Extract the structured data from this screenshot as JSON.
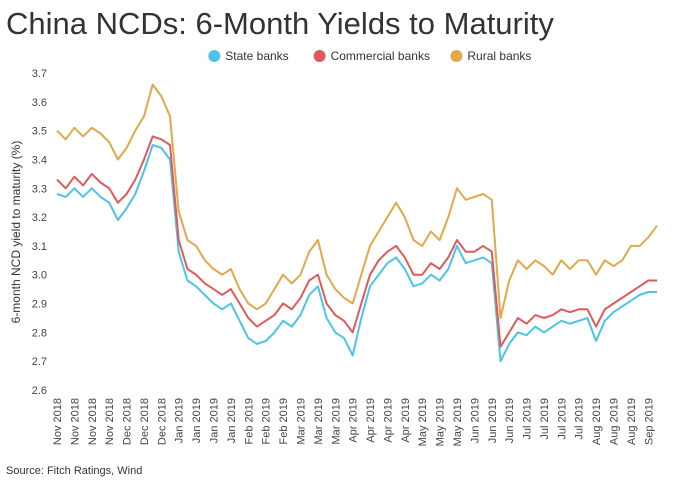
{
  "chart_data": {
    "type": "line",
    "title": "China NCDs: 6-Month Yields to Maturity",
    "ylabel": "6-month NCD yield to maturity (%)",
    "source": "Source: Fitch Ratings, Wind",
    "categories": [
      "Nov 2018",
      null,
      "Nov 2018",
      null,
      "Nov 2018",
      null,
      "Nov 2018",
      null,
      "Dec 2018",
      null,
      "Dec 2018",
      null,
      "Dec 2018",
      null,
      "Jan 2019",
      null,
      "Jan 2019",
      null,
      "Jan 2019",
      null,
      "Jan 2019",
      null,
      "Feb 2019",
      null,
      "Feb 2019",
      null,
      "Feb 2019",
      null,
      "Mar 2019",
      null,
      "Mar 2019",
      null,
      "Mar 2019",
      null,
      "Apr 2019",
      null,
      "Apr 2019",
      null,
      "Apr 2019",
      null,
      "Apr 2019",
      null,
      "May 2019",
      null,
      "May 2019",
      null,
      "May 2019",
      null,
      "Jun 2019",
      null,
      "Jun 2019",
      null,
      "Jun 2019",
      null,
      "Jul 2019",
      null,
      "Jul 2019",
      null,
      "Jul 2019",
      null,
      "Jul 2019",
      null,
      "Aug 2019",
      null,
      "Aug 2019",
      null,
      "Aug 2019",
      null,
      "Sep 2019",
      null
    ],
    "series": [
      {
        "name": "State banks",
        "color": "#4cc4ea",
        "values": [
          3.28,
          3.27,
          3.3,
          3.27,
          3.3,
          3.27,
          3.25,
          3.19,
          3.23,
          3.28,
          3.36,
          3.45,
          3.44,
          3.4,
          3.08,
          2.98,
          2.96,
          2.93,
          2.9,
          2.88,
          2.9,
          2.84,
          2.78,
          2.76,
          2.77,
          2.8,
          2.84,
          2.82,
          2.86,
          2.93,
          2.96,
          2.85,
          2.8,
          2.78,
          2.72,
          2.85,
          2.96,
          3.0,
          3.04,
          3.06,
          3.02,
          2.96,
          2.97,
          3.0,
          2.98,
          3.02,
          3.1,
          3.04,
          3.05,
          3.06,
          3.04,
          2.7,
          2.76,
          2.8,
          2.79,
          2.82,
          2.8,
          2.82,
          2.84,
          2.83,
          2.84,
          2.85,
          2.77,
          2.84,
          2.87,
          2.89,
          2.91,
          2.93,
          2.94,
          2.94
        ]
      },
      {
        "name": "Commercial banks",
        "color": "#e05a5a",
        "values": [
          3.33,
          3.3,
          3.34,
          3.31,
          3.35,
          3.32,
          3.3,
          3.25,
          3.28,
          3.33,
          3.4,
          3.48,
          3.47,
          3.45,
          3.12,
          3.02,
          3.0,
          2.97,
          2.95,
          2.93,
          2.95,
          2.9,
          2.85,
          2.82,
          2.84,
          2.86,
          2.9,
          2.88,
          2.92,
          2.98,
          3.0,
          2.9,
          2.86,
          2.84,
          2.8,
          2.9,
          3.0,
          3.05,
          3.08,
          3.1,
          3.06,
          3.0,
          3.0,
          3.04,
          3.02,
          3.06,
          3.12,
          3.08,
          3.08,
          3.1,
          3.08,
          2.75,
          2.8,
          2.85,
          2.83,
          2.86,
          2.85,
          2.86,
          2.88,
          2.87,
          2.88,
          2.88,
          2.82,
          2.88,
          2.9,
          2.92,
          2.94,
          2.96,
          2.98,
          2.98
        ]
      },
      {
        "name": "Rural banks",
        "color": "#e2a84a",
        "values": [
          3.5,
          3.47,
          3.51,
          3.48,
          3.51,
          3.49,
          3.46,
          3.4,
          3.44,
          3.5,
          3.55,
          3.66,
          3.62,
          3.55,
          3.22,
          3.12,
          3.1,
          3.05,
          3.02,
          3.0,
          3.02,
          2.95,
          2.9,
          2.88,
          2.9,
          2.95,
          3.0,
          2.97,
          3.0,
          3.08,
          3.12,
          3.0,
          2.95,
          2.92,
          2.9,
          3.0,
          3.1,
          3.15,
          3.2,
          3.25,
          3.2,
          3.12,
          3.1,
          3.15,
          3.12,
          3.2,
          3.3,
          3.26,
          3.27,
          3.28,
          3.26,
          2.85,
          2.98,
          3.05,
          3.02,
          3.05,
          3.03,
          3.0,
          3.05,
          3.02,
          3.05,
          3.05,
          3.0,
          3.05,
          3.03,
          3.05,
          3.1,
          3.1,
          3.13,
          3.17
        ]
      }
    ],
    "ylim": [
      2.6,
      3.7
    ],
    "yticks": [
      2.6,
      2.7,
      2.8,
      2.9,
      {
        "value": 3,
        "label": "3.0"
      },
      3.1,
      3.2,
      3.3,
      3.4,
      3.5,
      3.6,
      3.7
    ],
    "grid": false,
    "legend": "top"
  }
}
